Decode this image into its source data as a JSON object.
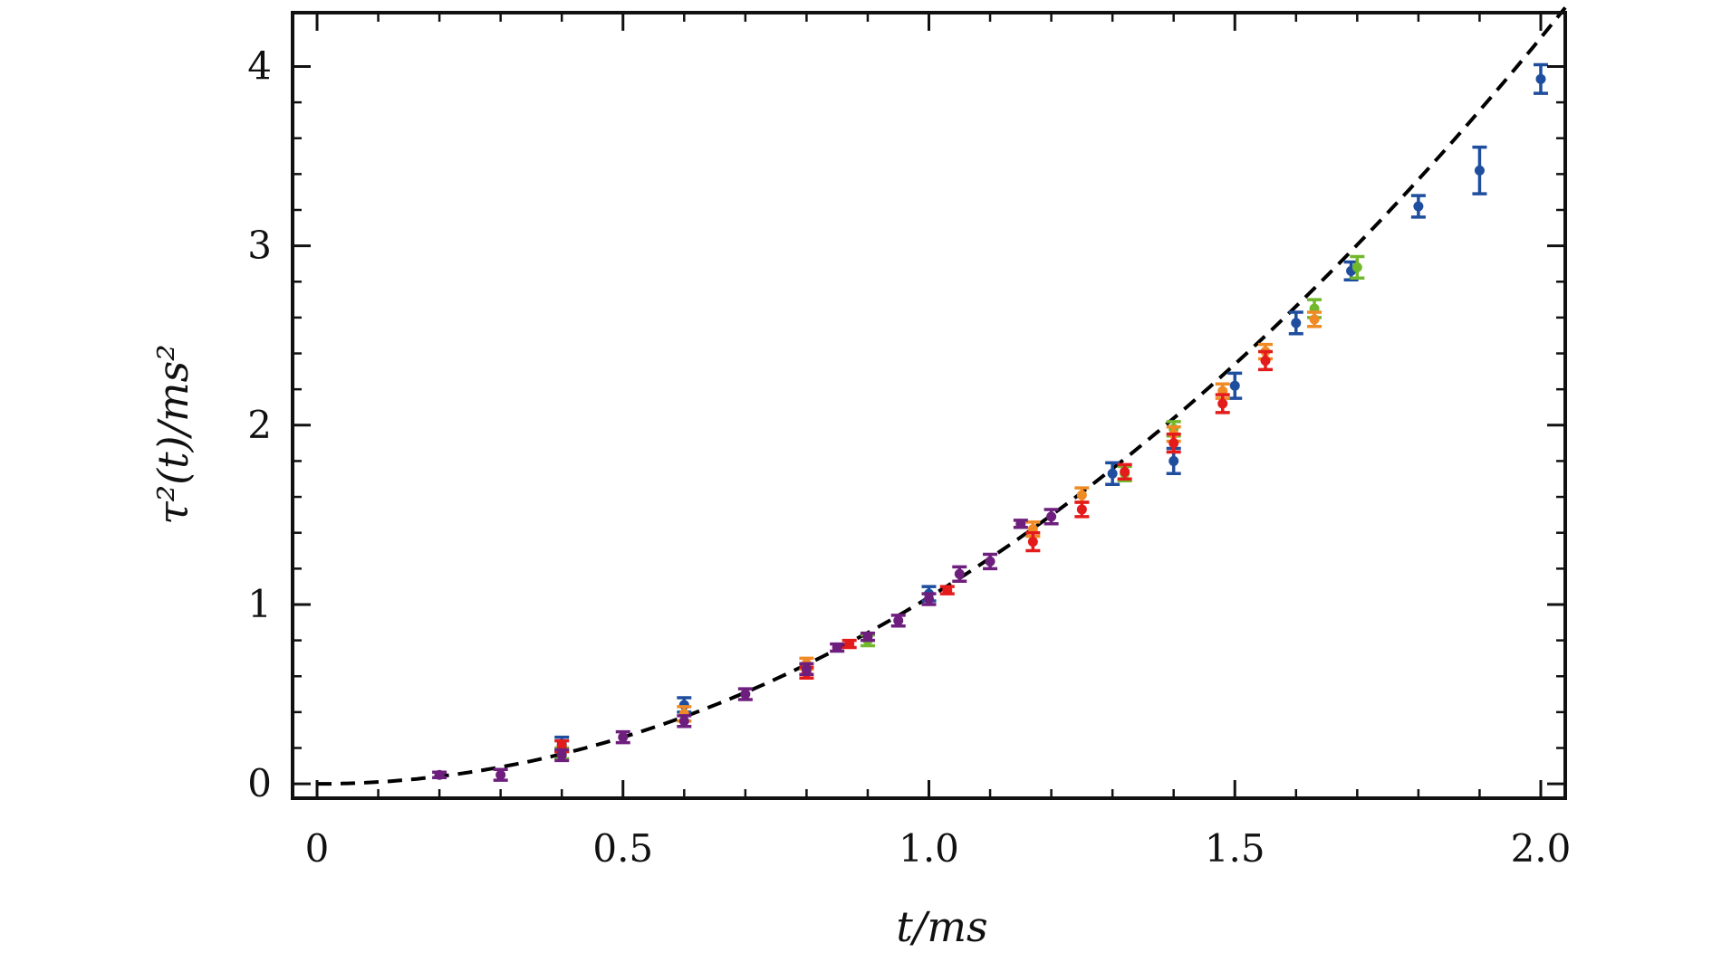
{
  "chart_data": {
    "type": "scatter",
    "xlabel": "t/ms",
    "ylabel": "τ²(t)/ms²",
    "xlim": [
      -0.04,
      2.04
    ],
    "ylim": [
      -0.08,
      4.3
    ],
    "xticks": [
      0,
      0.5,
      1.0,
      1.5,
      2.0
    ],
    "xtick_labels": [
      "0",
      "0.5",
      "1.0",
      "1.5",
      "2.0"
    ],
    "yticks": [
      0,
      1,
      2,
      3,
      4
    ],
    "ytick_labels": [
      "0",
      "1",
      "2",
      "3",
      "4"
    ],
    "grid": false,
    "fit_curve": {
      "style": "dashed",
      "color": "#000000",
      "formula": "y = 1.04 * x^2"
    },
    "series": [
      {
        "color": "#1f4e9e",
        "points": [
          {
            "x": 0.4,
            "y": 0.22,
            "err": 0.04
          },
          {
            "x": 0.6,
            "y": 0.44,
            "err": 0.04
          },
          {
            "x": 1.0,
            "y": 1.06,
            "err": 0.04
          },
          {
            "x": 1.3,
            "y": 1.73,
            "err": 0.06
          },
          {
            "x": 1.4,
            "y": 1.8,
            "err": 0.07
          },
          {
            "x": 1.5,
            "y": 2.22,
            "err": 0.07
          },
          {
            "x": 1.6,
            "y": 2.57,
            "err": 0.06
          },
          {
            "x": 1.69,
            "y": 2.86,
            "err": 0.05
          },
          {
            "x": 1.8,
            "y": 3.22,
            "err": 0.06
          },
          {
            "x": 1.9,
            "y": 3.42,
            "err": 0.13
          },
          {
            "x": 2.0,
            "y": 3.93,
            "err": 0.08
          }
        ]
      },
      {
        "color": "#72b82c",
        "points": [
          {
            "x": 0.4,
            "y": 0.17,
            "err": 0.03
          },
          {
            "x": 0.9,
            "y": 0.8,
            "err": 0.03
          },
          {
            "x": 1.32,
            "y": 1.73,
            "err": 0.04
          },
          {
            "x": 1.4,
            "y": 1.98,
            "err": 0.04
          },
          {
            "x": 1.63,
            "y": 2.65,
            "err": 0.05
          },
          {
            "x": 1.7,
            "y": 2.88,
            "err": 0.06
          }
        ]
      },
      {
        "color": "#f08a24",
        "points": [
          {
            "x": 0.6,
            "y": 0.39,
            "err": 0.04
          },
          {
            "x": 0.8,
            "y": 0.67,
            "err": 0.03
          },
          {
            "x": 1.17,
            "y": 1.42,
            "err": 0.04
          },
          {
            "x": 1.25,
            "y": 1.61,
            "err": 0.04
          },
          {
            "x": 1.4,
            "y": 1.95,
            "err": 0.04
          },
          {
            "x": 1.48,
            "y": 2.19,
            "err": 0.04
          },
          {
            "x": 1.55,
            "y": 2.41,
            "err": 0.04
          },
          {
            "x": 1.63,
            "y": 2.59,
            "err": 0.04
          }
        ]
      },
      {
        "color": "#e41b1b",
        "points": [
          {
            "x": 0.4,
            "y": 0.21,
            "err": 0.03
          },
          {
            "x": 0.8,
            "y": 0.62,
            "err": 0.03
          },
          {
            "x": 0.87,
            "y": 0.78,
            "err": 0.02
          },
          {
            "x": 1.03,
            "y": 1.08,
            "err": 0.02
          },
          {
            "x": 1.17,
            "y": 1.35,
            "err": 0.05
          },
          {
            "x": 1.25,
            "y": 1.53,
            "err": 0.04
          },
          {
            "x": 1.32,
            "y": 1.74,
            "err": 0.04
          },
          {
            "x": 1.4,
            "y": 1.9,
            "err": 0.05
          },
          {
            "x": 1.48,
            "y": 2.12,
            "err": 0.05
          },
          {
            "x": 1.55,
            "y": 2.36,
            "err": 0.05
          }
        ]
      },
      {
        "color": "#6e1f7e",
        "points": [
          {
            "x": 0.2,
            "y": 0.05,
            "err": 0.015
          },
          {
            "x": 0.3,
            "y": 0.05,
            "err": 0.03
          },
          {
            "x": 0.4,
            "y": 0.16,
            "err": 0.03
          },
          {
            "x": 0.5,
            "y": 0.26,
            "err": 0.03
          },
          {
            "x": 0.6,
            "y": 0.35,
            "err": 0.03
          },
          {
            "x": 0.7,
            "y": 0.5,
            "err": 0.03
          },
          {
            "x": 0.8,
            "y": 0.64,
            "err": 0.03
          },
          {
            "x": 0.85,
            "y": 0.76,
            "err": 0.02
          },
          {
            "x": 0.9,
            "y": 0.82,
            "err": 0.02
          },
          {
            "x": 0.95,
            "y": 0.91,
            "err": 0.03
          },
          {
            "x": 1.0,
            "y": 1.03,
            "err": 0.03
          },
          {
            "x": 1.05,
            "y": 1.17,
            "err": 0.04
          },
          {
            "x": 1.1,
            "y": 1.24,
            "err": 0.04
          },
          {
            "x": 1.15,
            "y": 1.45,
            "err": 0.02
          },
          {
            "x": 1.2,
            "y": 1.49,
            "err": 0.04
          }
        ]
      }
    ]
  }
}
